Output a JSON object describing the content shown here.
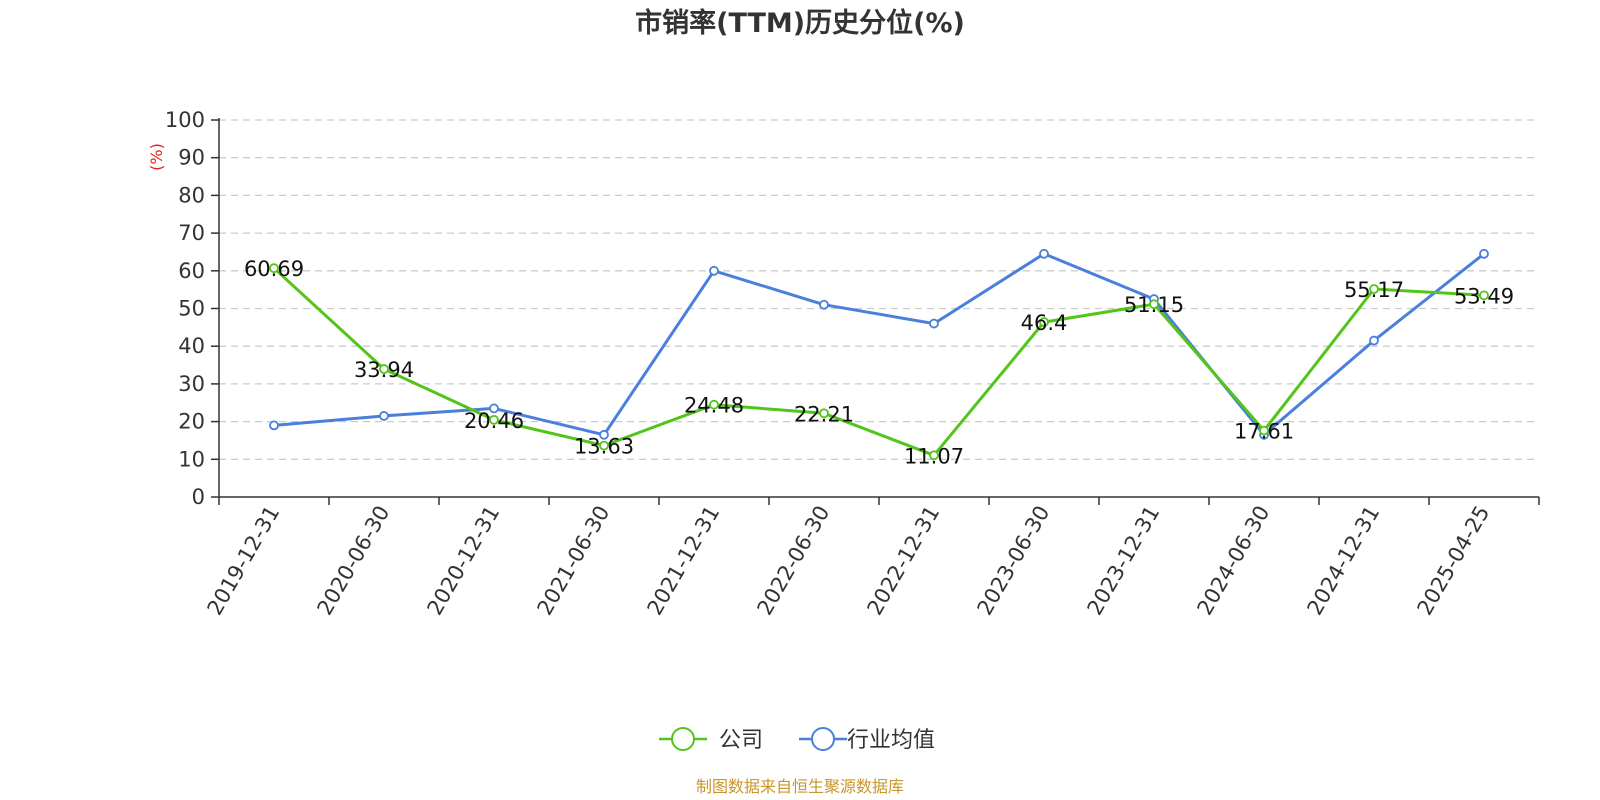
{
  "chart_data": {
    "type": "line",
    "title": "市销率(TTM)历史分位(%)",
    "ylabel": "(%)",
    "ylim": [
      0,
      100
    ],
    "yticks": [
      0,
      10,
      20,
      30,
      40,
      50,
      60,
      70,
      80,
      90,
      100
    ],
    "grid": true,
    "legend_position": "bottom",
    "categories": [
      "2019-12-31",
      "2020-06-30",
      "2020-12-31",
      "2021-06-30",
      "2021-12-31",
      "2022-06-30",
      "2022-12-31",
      "2023-06-30",
      "2023-12-31",
      "2024-06-30",
      "2024-12-31",
      "2025-04-25"
    ],
    "series": [
      {
        "name": "公司",
        "color": "#52c41a",
        "values": [
          60.69,
          33.94,
          20.46,
          13.63,
          24.48,
          22.21,
          11.07,
          46.4,
          51.15,
          17.61,
          55.17,
          53.49
        ],
        "labels": [
          "60.69",
          "33.94",
          "20.46",
          "13.63",
          "24.48",
          "22.21",
          "11.07",
          "46.4",
          "51.15",
          "17.61",
          "55.17",
          "53.49"
        ]
      },
      {
        "name": "行业均值",
        "color": "#4a7fdc",
        "values": [
          19,
          21.5,
          23.5,
          16.5,
          60,
          51,
          46,
          64.5,
          52.5,
          16.5,
          41.5,
          64.5
        ]
      }
    ],
    "source": "制图数据来自恒生聚源数据库"
  }
}
